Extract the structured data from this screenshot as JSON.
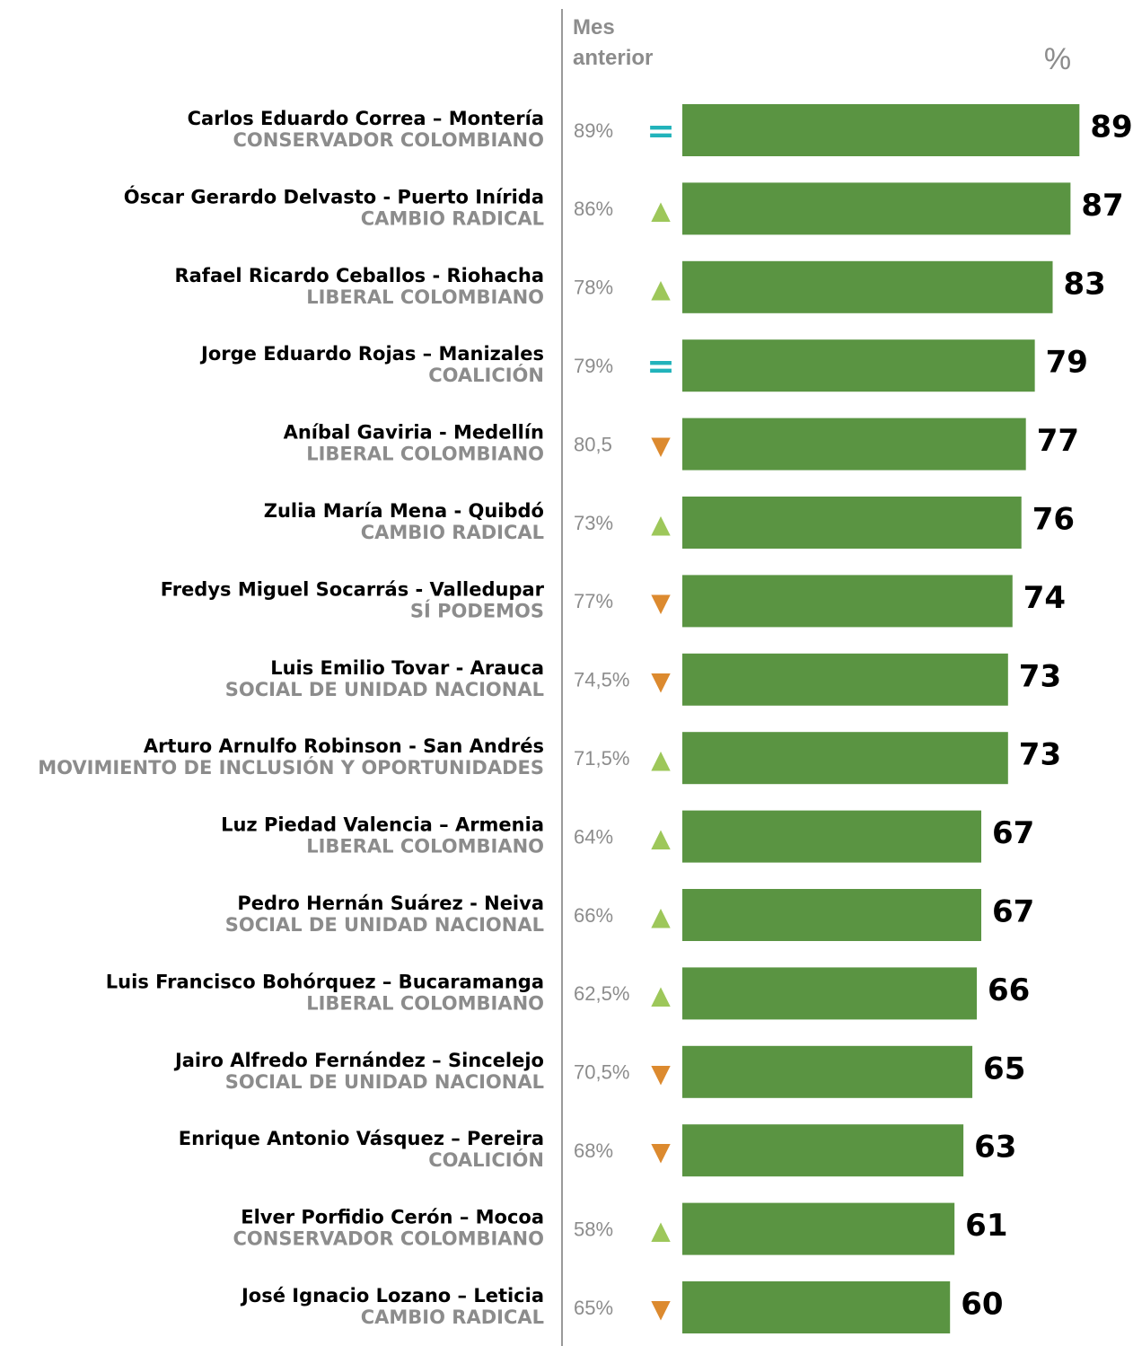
{
  "chart_data": {
    "type": "bar",
    "previous_label": "Mes anterior",
    "unit_label": "%",
    "categories": [
      "Carlos Eduardo Correa – Montería",
      "Óscar Gerardo Delvasto - Puerto Inírida",
      "Rafael Ricardo Ceballos - Riohacha",
      "Jorge Eduardo Rojas – Manizales",
      "Aníbal Gaviria - Medellín",
      "Zulia María Mena - Quibdó",
      "Fredys Miguel Socarrás - Valledupar",
      "Luis Emilio Tovar - Arauca",
      "Arturo Arnulfo Robinson - San Andrés",
      "Luz Piedad Valencia – Armenia",
      "Pedro Hernán Suárez - Neiva",
      "Luis Francisco Bohórquez – Bucaramanga",
      "Jairo Alfredo Fernández – Sincelejo",
      "Enrique Antonio Vásquez – Pereira",
      "Elver Porfidio Cerón – Mocoa",
      "José Ignacio Lozano – Leticia"
    ],
    "parties": [
      "CONSERVADOR COLOMBIANO",
      "CAMBIO RADICAL",
      "LIBERAL COLOMBIANO",
      "COALICIÓN",
      "LIBERAL COLOMBIANO",
      "CAMBIO RADICAL",
      "SÍ PODEMOS",
      "SOCIAL DE UNIDAD NACIONAL",
      "MOVIMIENTO DE INCLUSIÓN Y OPORTUNIDADES",
      "LIBERAL COLOMBIANO",
      "SOCIAL DE UNIDAD NACIONAL",
      "LIBERAL COLOMBIANO",
      "SOCIAL DE UNIDAD NACIONAL",
      "COALICIÓN",
      "CONSERVADOR COLOMBIANO",
      "CAMBIO RADICAL"
    ],
    "previous": [
      "89%",
      "86%",
      "78%",
      "79%",
      "80,5",
      "73%",
      "77%",
      "74,5%",
      "71,5%",
      "64%",
      "66%",
      "62,5%",
      "70,5%",
      "68%",
      "58%",
      "65%"
    ],
    "trend": [
      "=",
      "▲",
      "▲",
      "=",
      "▼",
      "▲",
      "▼",
      "▼",
      "▲",
      "▲",
      "▲",
      "▲",
      "▼",
      "▼",
      "▲",
      "▼"
    ],
    "trend_colors": {
      "=": "#22b3bb",
      "▲": "#9dc75a",
      "▼": "#dc8a2f"
    },
    "values": [
      89,
      87,
      83,
      79,
      77,
      76,
      74,
      73,
      73,
      67,
      67,
      66,
      65,
      63,
      61,
      60
    ],
    "color": "#5a9442",
    "xlim": [
      0,
      100
    ]
  }
}
